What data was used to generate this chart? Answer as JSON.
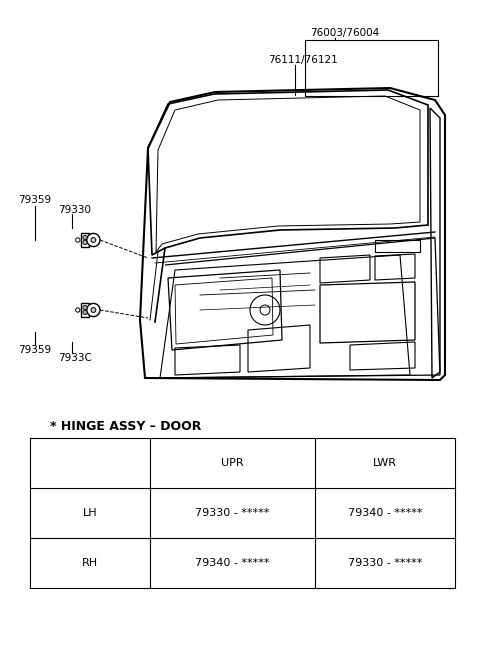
{
  "bg_color": "#ffffff",
  "labels": {
    "76003_76004": "76003/76004",
    "76111_76121": "76111/76121",
    "79359_upper": "79359",
    "79330": "79330",
    "79359_lower": "79359",
    "7933C": "7933C"
  },
  "table_title": "* HINGE ASSY - DOOR",
  "table_headers": [
    "",
    "UPR",
    "LWR"
  ],
  "table_rows": [
    [
      "LH",
      "79330 - *****",
      "79340 - *****"
    ],
    [
      "RH",
      "79340 - *****",
      "79330 - *****"
    ]
  ],
  "font_color": "#000000",
  "line_color": "#000000"
}
